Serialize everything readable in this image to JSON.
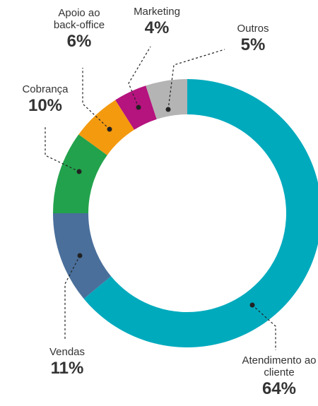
{
  "chart_data": {
    "type": "donut",
    "categories": [
      "Atendimento ao cliente",
      "Vendas",
      "Cobrança",
      "Apoio ao back-office",
      "Marketing",
      "Outros"
    ],
    "values": [
      64,
      11,
      10,
      6,
      4,
      5
    ],
    "value_labels": [
      "64%",
      "11%",
      "10%",
      "6%",
      "4%",
      "5%"
    ],
    "colors": [
      "#00aabd",
      "#4a6f9b",
      "#22a24c",
      "#f39a0f",
      "#b5137e",
      "#b4b4b4"
    ]
  }
}
